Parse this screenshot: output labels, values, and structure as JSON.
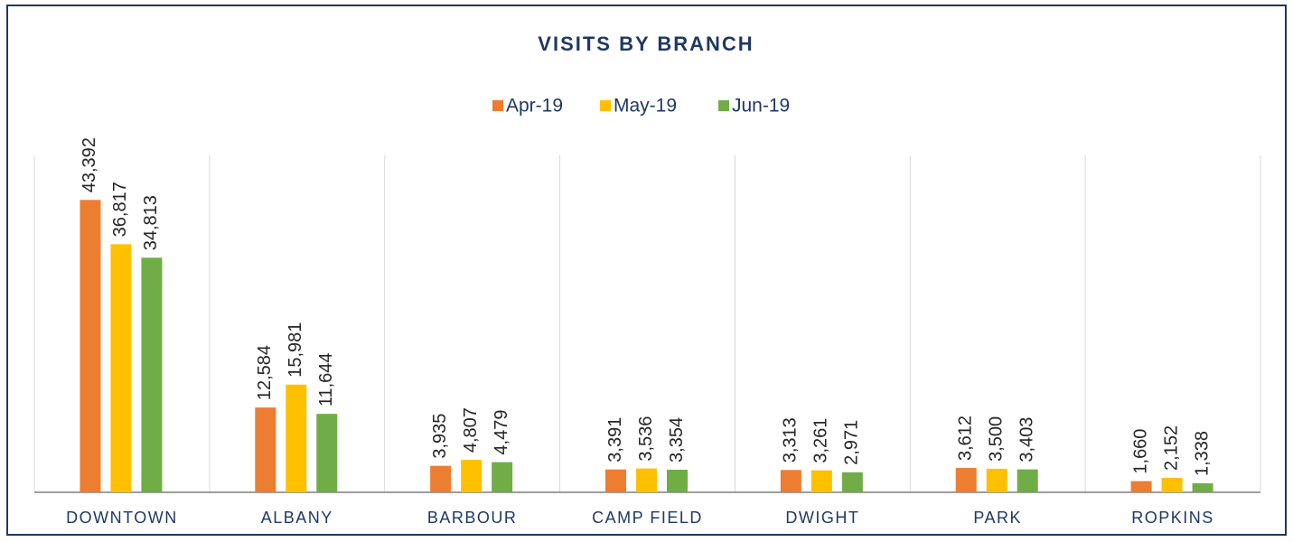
{
  "chart_data": {
    "type": "bar",
    "title": "VISITS BY BRANCH",
    "categories": [
      "DOWNTOWN",
      "ALBANY",
      "BARBOUR",
      "CAMP FIELD",
      "DWIGHT",
      "PARK",
      "ROPKINS"
    ],
    "series": [
      {
        "name": "Apr-19",
        "color": "#ed7d31",
        "values": [
          43392,
          12584,
          3935,
          3391,
          3313,
          3612,
          1660
        ],
        "value_labels": [
          "43,392",
          "12,584",
          "3,935",
          "3,391",
          "3,313",
          "3,612",
          "1,660"
        ]
      },
      {
        "name": "May-19",
        "color": "#ffc000",
        "values": [
          36817,
          15981,
          4807,
          3536,
          3261,
          3500,
          2152
        ],
        "value_labels": [
          "36,817",
          "15,981",
          "4,807",
          "3,536",
          "3,261",
          "3,500",
          "2,152"
        ]
      },
      {
        "name": "Jun-19",
        "color": "#70ad47",
        "values": [
          34813,
          11644,
          4479,
          3354,
          2971,
          3403,
          1338
        ],
        "value_labels": [
          "34,813",
          "11,644",
          "4,479",
          "3,354",
          "2,971",
          "3,403",
          "1,338"
        ]
      }
    ],
    "ylim": [
      0,
      50000
    ],
    "legend": "top"
  }
}
